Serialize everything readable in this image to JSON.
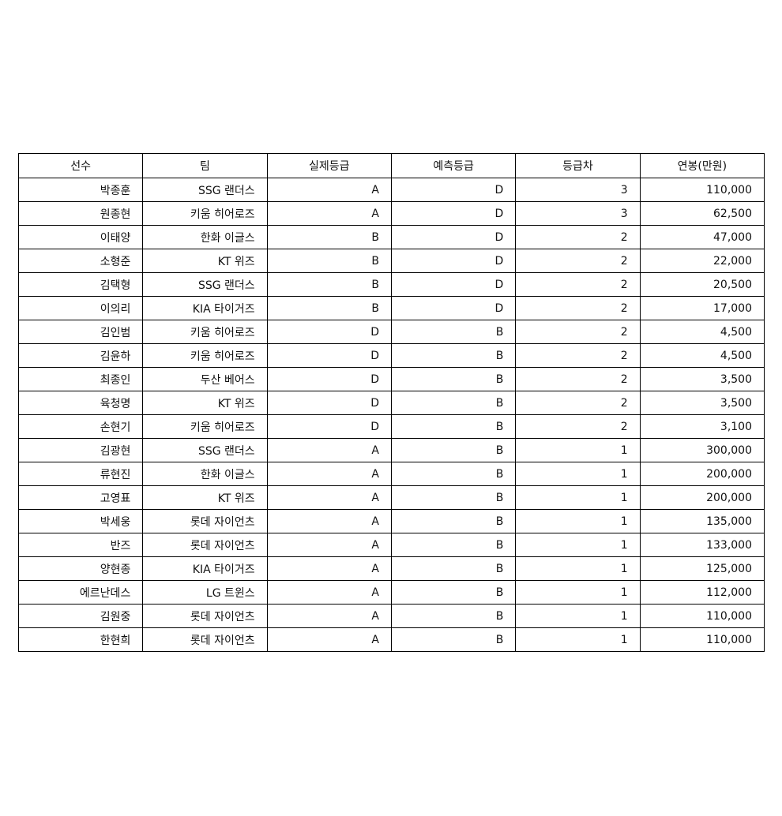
{
  "table": {
    "headers": [
      "선수",
      "팀",
      "실제등급",
      "예측등급",
      "등급차",
      "연봉(만원)"
    ],
    "rows": [
      [
        "박종훈",
        "SSG 랜더스",
        "A",
        "D",
        "3",
        "110,000"
      ],
      [
        "원종현",
        "키움 히어로즈",
        "A",
        "D",
        "3",
        "62,500"
      ],
      [
        "이태양",
        "한화 이글스",
        "B",
        "D",
        "2",
        "47,000"
      ],
      [
        "소형준",
        "KT 위즈",
        "B",
        "D",
        "2",
        "22,000"
      ],
      [
        "김택형",
        "SSG 랜더스",
        "B",
        "D",
        "2",
        "20,500"
      ],
      [
        "이의리",
        "KIA 타이거즈",
        "B",
        "D",
        "2",
        "17,000"
      ],
      [
        "김인범",
        "키움 히어로즈",
        "D",
        "B",
        "2",
        "4,500"
      ],
      [
        "김윤하",
        "키움 히어로즈",
        "D",
        "B",
        "2",
        "4,500"
      ],
      [
        "최종인",
        "두산 베어스",
        "D",
        "B",
        "2",
        "3,500"
      ],
      [
        "육청명",
        "KT 위즈",
        "D",
        "B",
        "2",
        "3,500"
      ],
      [
        "손현기",
        "키움 히어로즈",
        "D",
        "B",
        "2",
        "3,100"
      ],
      [
        "김광현",
        "SSG 랜더스",
        "A",
        "B",
        "1",
        "300,000"
      ],
      [
        "류현진",
        "한화 이글스",
        "A",
        "B",
        "1",
        "200,000"
      ],
      [
        "고영표",
        "KT 위즈",
        "A",
        "B",
        "1",
        "200,000"
      ],
      [
        "박세웅",
        "롯데 자이언츠",
        "A",
        "B",
        "1",
        "135,000"
      ],
      [
        "반즈",
        "롯데 자이언츠",
        "A",
        "B",
        "1",
        "133,000"
      ],
      [
        "양현종",
        "KIA 타이거즈",
        "A",
        "B",
        "1",
        "125,000"
      ],
      [
        "에르난데스",
        "LG 트윈스",
        "A",
        "B",
        "1",
        "112,000"
      ],
      [
        "김원중",
        "롯데 자이언츠",
        "A",
        "B",
        "1",
        "110,000"
      ],
      [
        "한현희",
        "롯데 자이언츠",
        "A",
        "B",
        "1",
        "110,000"
      ]
    ]
  }
}
